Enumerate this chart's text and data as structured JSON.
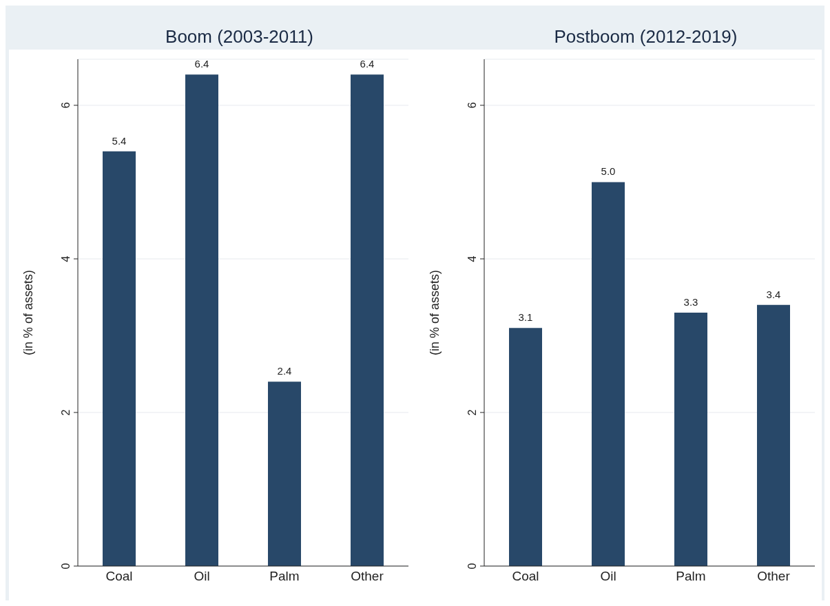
{
  "chart_data": [
    {
      "type": "bar",
      "title": "Boom (2003-2011)",
      "ylabel": "(in % of assets)",
      "categories": [
        "Coal",
        "Oil",
        "Palm",
        "Other"
      ],
      "values": [
        5.4,
        6.4,
        2.4,
        6.4
      ],
      "color": "#284869",
      "ylim": [
        0,
        6.6
      ],
      "yticks": [
        0,
        2,
        4,
        6
      ],
      "grid": "y",
      "data_labels": true
    },
    {
      "type": "bar",
      "title": "Postboom (2012-2019)",
      "ylabel": "(in % of assets)",
      "categories": [
        "Coal",
        "Oil",
        "Palm",
        "Other"
      ],
      "values": [
        3.1,
        5.0,
        3.3,
        3.4
      ],
      "value_labels": [
        "3.1",
        "5.0",
        "3.3",
        "3.4"
      ],
      "color": "#284869",
      "ylim": [
        0,
        6.6
      ],
      "yticks": [
        0,
        2,
        4,
        6
      ],
      "grid": "y"
    }
  ]
}
